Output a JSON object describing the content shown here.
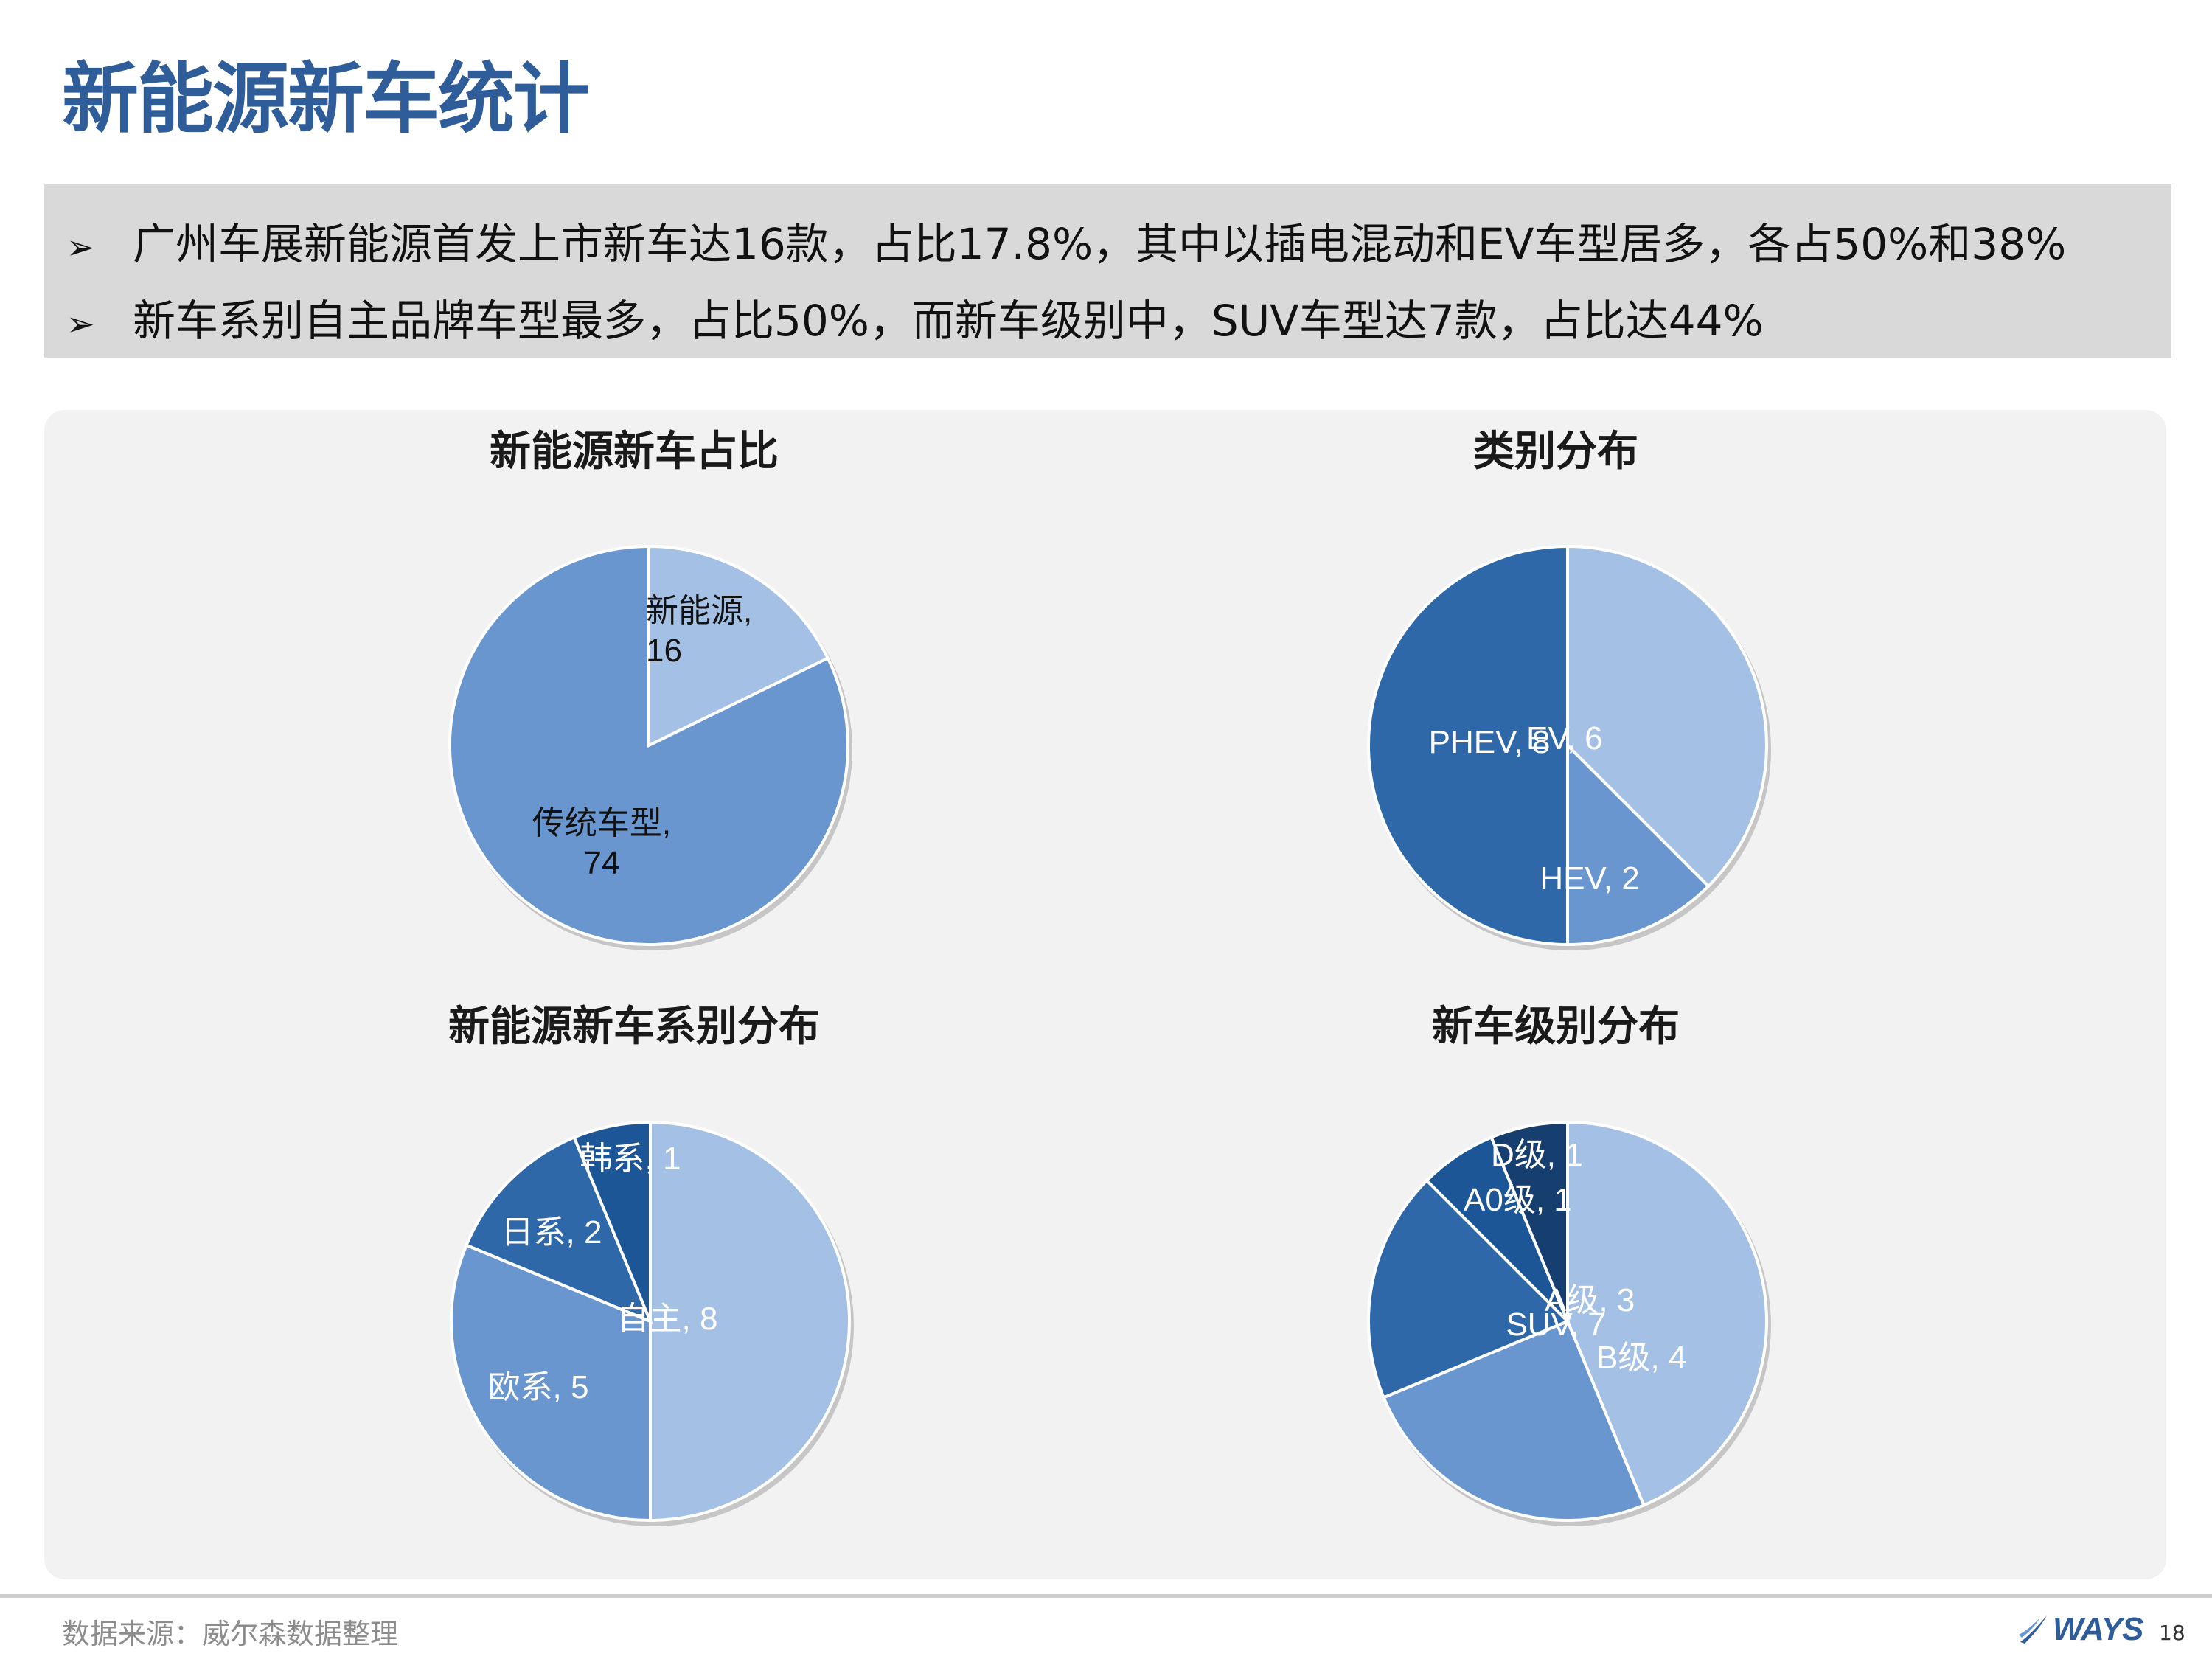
{
  "slide": {
    "title": "新能源新车统计",
    "bullets": [
      "广州车展新能源首发上市新车达16款，占比17.8%，其中以插电混动和EV车型居多，各占50%和38%",
      "新车系别自主品牌车型最多，占比50%，而新车级别中，SUV车型达7款，占比达44%"
    ],
    "bullet_icon": "arrowhead-icon",
    "source": "数据来源：威尔森数据整理",
    "logo_text": "WAYS",
    "page_number": "18"
  },
  "colors": {
    "title": "#2e5d99",
    "light": "#a4c0e4",
    "mid": "#6996cf",
    "dark": "#2f68a8",
    "darker": "#1d5696",
    "darkest": "#163f6f"
  },
  "chart_data": [
    {
      "type": "pie",
      "title": "新能源新车占比",
      "series": [
        {
          "name": "新能源",
          "value": 16,
          "label": "新能源,\n16",
          "color": "#a4c0e4"
        },
        {
          "name": "传统车型",
          "value": 74,
          "label": "传统车型,\n74",
          "color": "#6996cf"
        }
      ]
    },
    {
      "type": "pie",
      "title": "类别分布",
      "series": [
        {
          "name": "EV",
          "value": 6,
          "label": "EV, 6",
          "color": "#a4c0e4"
        },
        {
          "name": "HEV",
          "value": 2,
          "label": "HEV, 2",
          "color": "#6996cf"
        },
        {
          "name": "PHEV",
          "value": 8,
          "label": "PHEV, 8",
          "color": "#2f68a8"
        }
      ]
    },
    {
      "type": "pie",
      "title": "新能源新车系别分布",
      "series": [
        {
          "name": "自主",
          "value": 8,
          "label": "自主, 8",
          "color": "#a4c0e4"
        },
        {
          "name": "欧系",
          "value": 5,
          "label": "欧系, 5",
          "color": "#6996cf"
        },
        {
          "name": "日系",
          "value": 2,
          "label": "日系, 2",
          "color": "#2f68a8"
        },
        {
          "name": "韩系",
          "value": 1,
          "label": "韩系, 1",
          "color": "#1d5696"
        }
      ]
    },
    {
      "type": "pie",
      "title": "新车级别分布",
      "series": [
        {
          "name": "SUV",
          "value": 7,
          "label": "SUV, 7",
          "color": "#a4c0e4"
        },
        {
          "name": "B级",
          "value": 4,
          "label": "B级, 4",
          "color": "#6996cf"
        },
        {
          "name": "A级",
          "value": 3,
          "label": "A级, 3",
          "color": "#2f68a8"
        },
        {
          "name": "A0级",
          "value": 1,
          "label": "A0级, 1",
          "color": "#1d5696"
        },
        {
          "name": "D级",
          "value": 1,
          "label": "D级, 1",
          "color": "#163f6f"
        }
      ]
    }
  ]
}
